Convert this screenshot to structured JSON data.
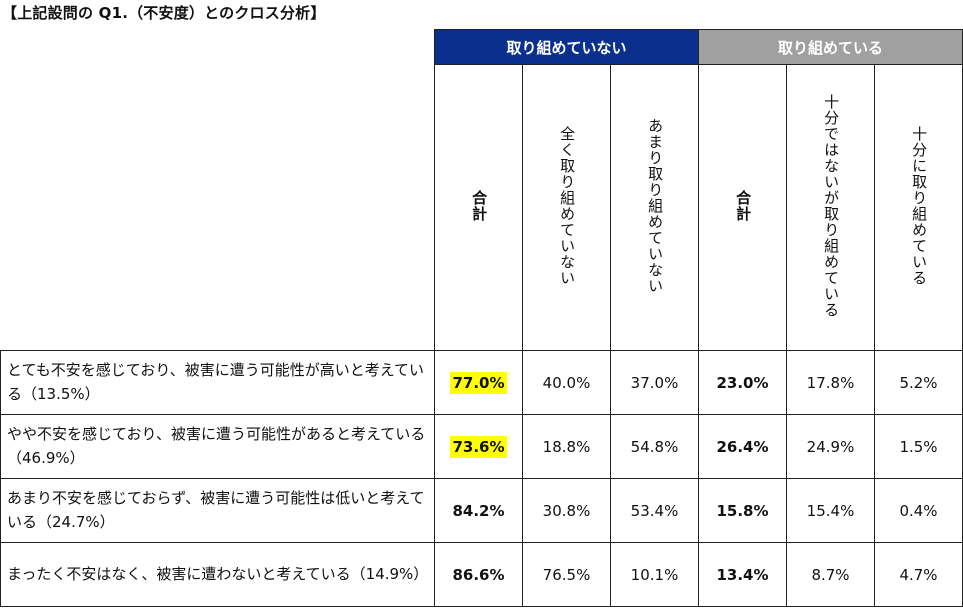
{
  "title": "【上記設問の Q1.（不安度）とのクロス分析】",
  "group_headers": [
    "取り組めていない",
    "取り組めている"
  ],
  "column_headers": [
    "合計",
    "全く取り組めていない",
    "あまり取り組めていない",
    "合計",
    "十分ではないが取り組めている",
    "十分に取り組めている"
  ],
  "rows": [
    {
      "label": "とても不安を感じており、被害に遭う可能性が高いと考えている（13.5%）",
      "values": [
        "77.0%",
        "40.0%",
        "37.0%",
        "23.0%",
        "17.8%",
        "5.2%"
      ],
      "highlight_first": true
    },
    {
      "label": "やや不安を感じており、被害に遭う可能性があると考えている（46.9%）",
      "values": [
        "73.6%",
        "18.8%",
        "54.8%",
        "26.4%",
        "24.9%",
        "1.5%"
      ],
      "highlight_first": true
    },
    {
      "label": "あまり不安を感じておらず、被害に遭う可能性は低いと考えている（24.7%）",
      "values": [
        "84.2%",
        "30.8%",
        "53.4%",
        "15.8%",
        "15.4%",
        "0.4%"
      ],
      "highlight_first": false
    },
    {
      "label": "まったく不安はなく、被害に遭わないと考えている（14.9%）",
      "values": [
        "86.6%",
        "76.5%",
        "10.1%",
        "13.4%",
        "8.7%",
        "4.7%"
      ],
      "highlight_first": false
    }
  ],
  "colors": {
    "group_a_bg": "#0a2f8c",
    "group_b_bg": "#a0a0a0",
    "highlight": "#ffff00"
  }
}
